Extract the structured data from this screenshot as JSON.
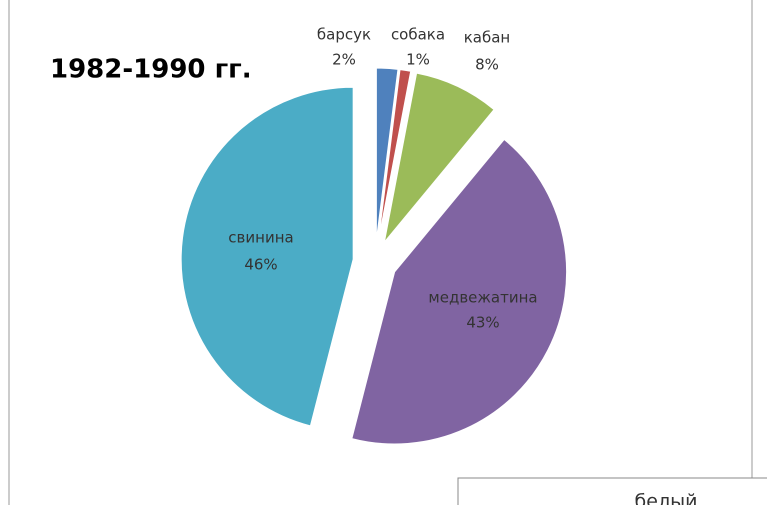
{
  "chart_data": {
    "type": "pie",
    "title": "1982-1990 гг.",
    "categories": [
      "барсук",
      "собака",
      "кабан",
      "медвежатина",
      "свинина"
    ],
    "values": [
      2,
      1,
      8,
      43,
      46
    ],
    "value_labels": [
      "2%",
      "1%",
      "8%",
      "43%",
      "46%"
    ],
    "colors": [
      "#4f81bd",
      "#c0504d",
      "#9bbb59",
      "#8064a2",
      "#4bacc6"
    ],
    "exploded": true
  },
  "other_text": "белый"
}
